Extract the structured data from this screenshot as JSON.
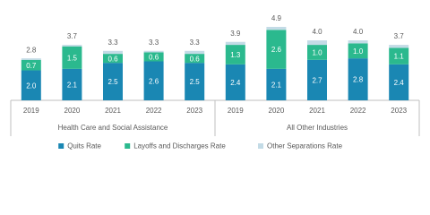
{
  "chart_data": {
    "type": "stacked_bar",
    "categories": [
      "2019",
      "2020",
      "2021",
      "2022",
      "2023",
      "2019",
      "2020",
      "2021",
      "2022",
      "2023"
    ],
    "group_labels": [
      "Health Care and Social Assistance",
      "All Other Industries"
    ],
    "series": [
      {
        "name": "Quits Rate",
        "color": "#1a87b3",
        "values": [
          2.0,
          2.1,
          2.5,
          2.6,
          2.5,
          2.4,
          2.1,
          2.7,
          2.8,
          2.4
        ],
        "value_labels": [
          "2.0",
          "2.1",
          "2.5",
          "2.6",
          "2.5",
          "2.4",
          "2.1",
          "2.7",
          "2.8",
          "2.4"
        ]
      },
      {
        "name": "Layoffs and Discharges Rate",
        "color": "#2bb98e",
        "values": [
          0.7,
          1.5,
          0.6,
          0.6,
          0.6,
          1.3,
          2.6,
          1.0,
          1.0,
          1.1
        ],
        "value_labels": [
          "0.7",
          "1.5",
          "0.6",
          "0.6",
          "0.6",
          "1.3",
          "2.6",
          "1.0",
          "1.0",
          "1.1"
        ]
      },
      {
        "name": "Other Separations Rate",
        "color": "#c3dbe6",
        "values": [
          0.1,
          0.1,
          0.2,
          0.1,
          0.2,
          0.2,
          0.2,
          0.3,
          0.2,
          0.2
        ]
      }
    ],
    "total_labels": [
      "2.8",
      "3.7",
      "3.3",
      "3.3",
      "3.3",
      "3.9",
      "4.9",
      "4.0",
      "4.0",
      "3.7"
    ]
  }
}
